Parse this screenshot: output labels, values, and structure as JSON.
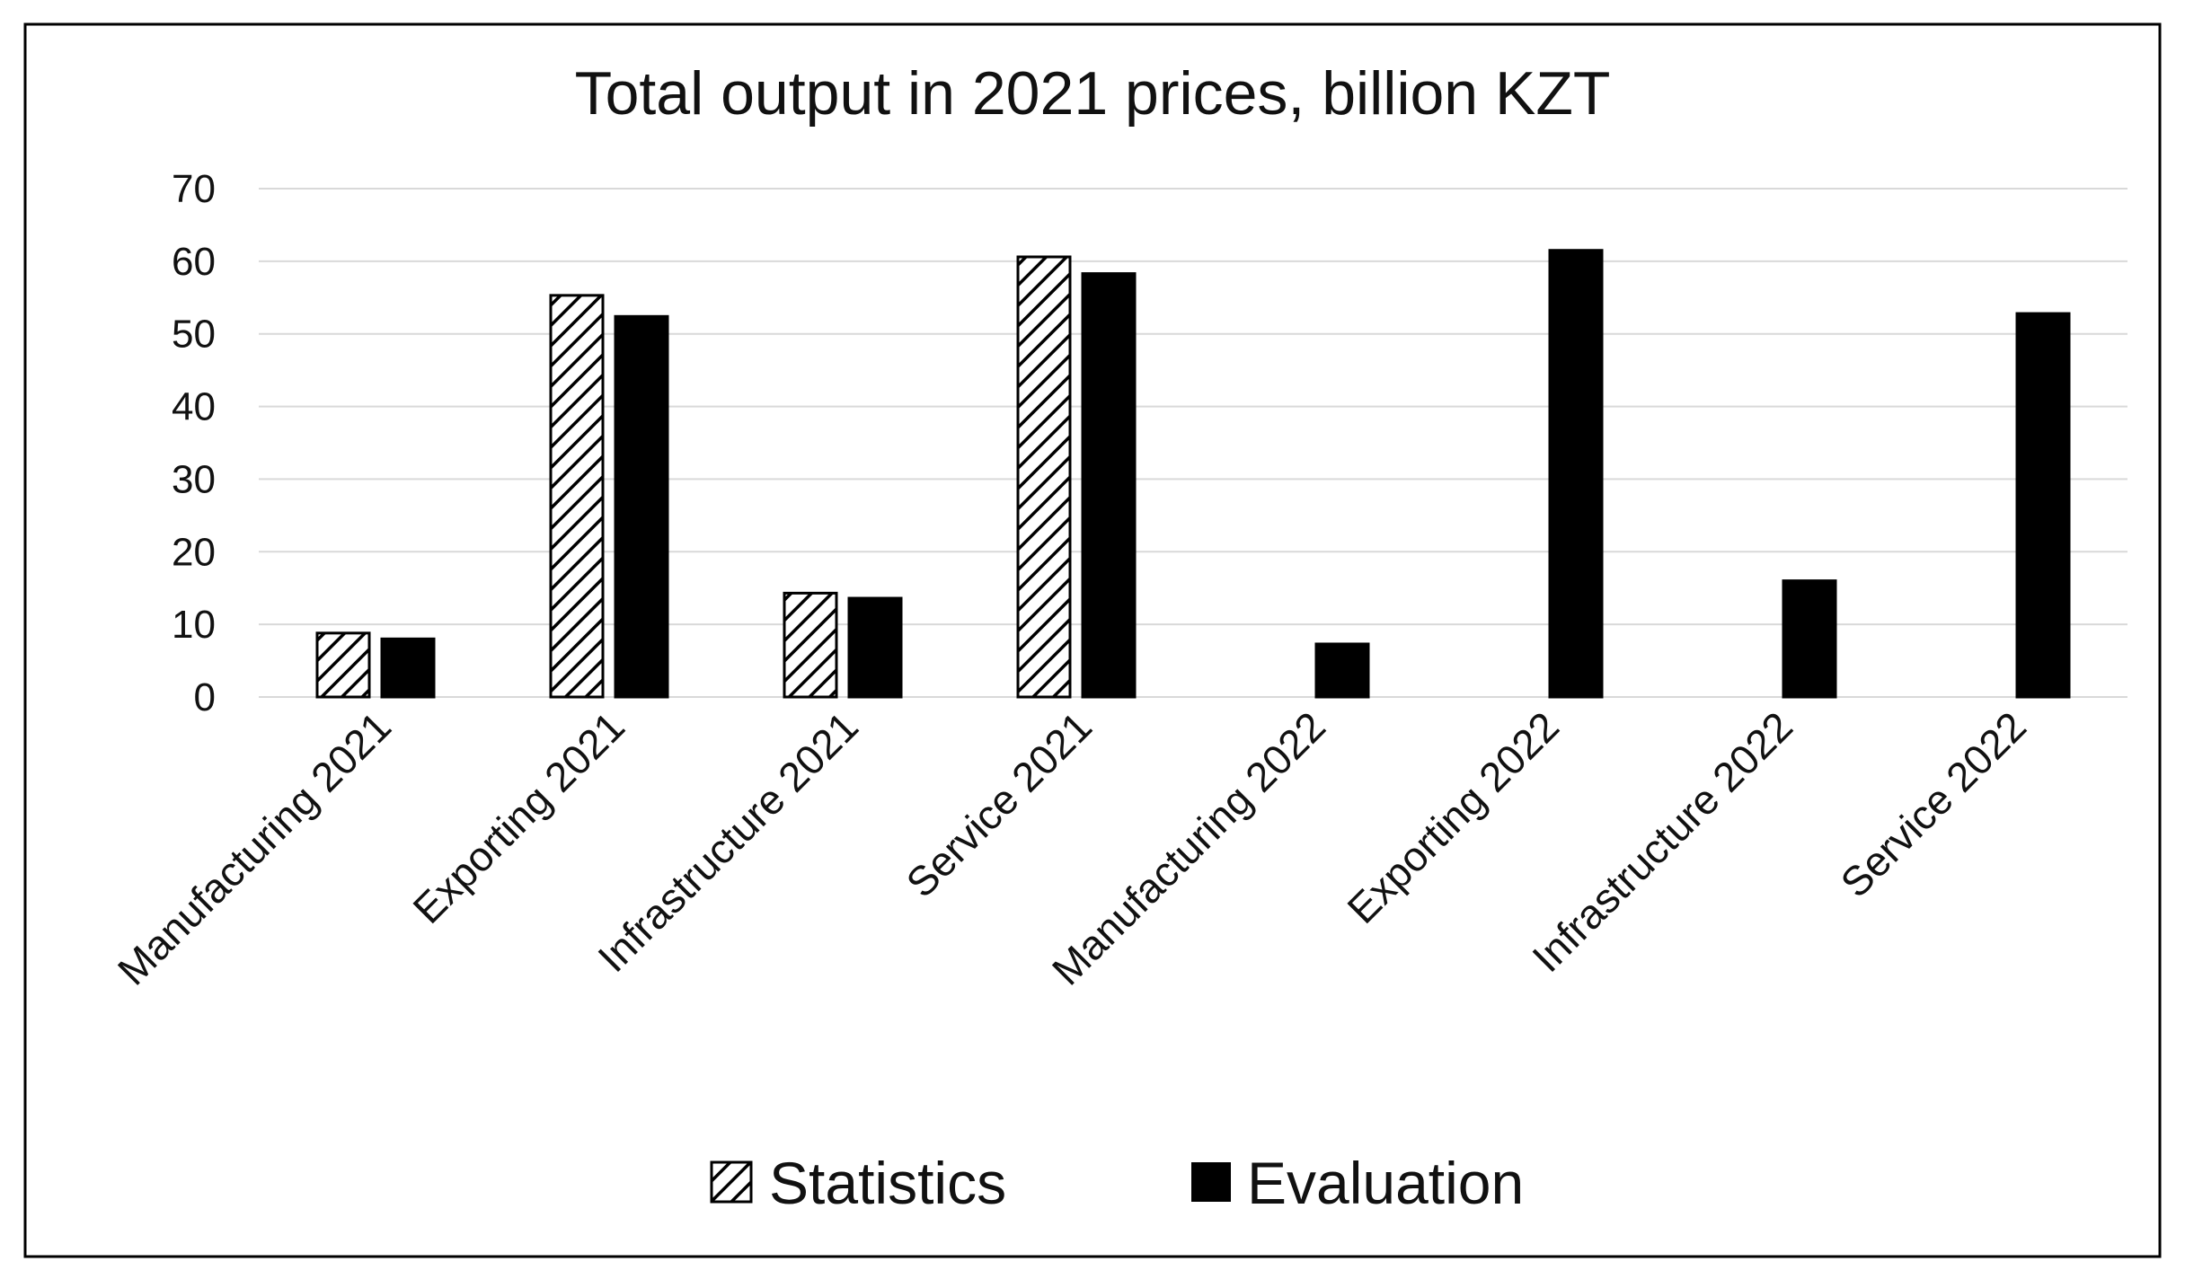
{
  "chart_data": {
    "type": "bar",
    "title": "Total output in 2021 prices, billion KZT",
    "xlabel": "",
    "ylabel": "",
    "ylim": [
      0,
      70
    ],
    "yticks": [
      0,
      10,
      20,
      30,
      40,
      50,
      60,
      70
    ],
    "grid": true,
    "legend_position": "bottom",
    "categories": [
      "Manufacturing 2021",
      "Exporting 2021",
      "Infrastructure 2021",
      "Service 2021",
      "Manufacturing 2022",
      "Exporting 2022",
      "Infrastructure 2022",
      "Service 2022"
    ],
    "series": [
      {
        "name": "Statistics",
        "pattern": "hatched",
        "color": "#000000",
        "values": [
          8.8,
          55.3,
          14.3,
          60.6,
          null,
          null,
          null,
          null
        ]
      },
      {
        "name": "Evaluation",
        "pattern": "solid",
        "color": "#000000",
        "values": [
          8.0,
          52.4,
          13.6,
          58.3,
          7.3,
          61.5,
          16.0,
          52.8
        ]
      }
    ]
  }
}
